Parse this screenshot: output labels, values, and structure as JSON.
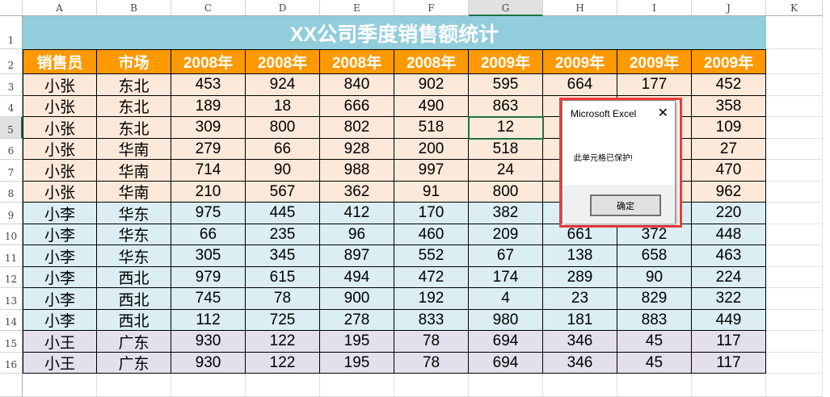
{
  "columns": [
    "A",
    "B",
    "C",
    "D",
    "E",
    "F",
    "G",
    "H",
    "I",
    "J",
    "K"
  ],
  "selected_column": "G",
  "selected_row": 5,
  "title": "XX公司季度销售额统计",
  "headers": [
    "销售员",
    "市场",
    "2008年",
    "2008年",
    "2008年",
    "2008年",
    "2009年",
    "2009年",
    "2009年",
    "2009年"
  ],
  "rows": [
    {
      "group": "orange",
      "cells": [
        "小张",
        "东北",
        "453",
        "924",
        "840",
        "902",
        "595",
        "664",
        "177",
        "452"
      ]
    },
    {
      "group": "orange",
      "cells": [
        "小张",
        "东北",
        "189",
        "18",
        "666",
        "490",
        "863",
        "",
        "",
        "358"
      ]
    },
    {
      "group": "orange",
      "cells": [
        "小张",
        "东北",
        "309",
        "800",
        "802",
        "518",
        "12",
        "",
        "",
        "109"
      ]
    },
    {
      "group": "orange",
      "cells": [
        "小张",
        "华南",
        "279",
        "66",
        "928",
        "200",
        "518",
        "",
        "",
        "27"
      ]
    },
    {
      "group": "orange",
      "cells": [
        "小张",
        "华南",
        "714",
        "90",
        "988",
        "997",
        "24",
        "",
        "",
        "470"
      ]
    },
    {
      "group": "orange",
      "cells": [
        "小张",
        "华南",
        "210",
        "567",
        "362",
        "91",
        "800",
        "",
        "",
        "962"
      ]
    },
    {
      "group": "blue",
      "cells": [
        "小李",
        "华东",
        "975",
        "445",
        "412",
        "170",
        "382",
        "",
        "",
        "220"
      ]
    },
    {
      "group": "blue",
      "cells": [
        "小李",
        "华东",
        "66",
        "235",
        "96",
        "460",
        "209",
        "661",
        "372",
        "448"
      ]
    },
    {
      "group": "blue",
      "cells": [
        "小李",
        "华东",
        "305",
        "345",
        "897",
        "552",
        "67",
        "138",
        "658",
        "463"
      ]
    },
    {
      "group": "blue",
      "cells": [
        "小李",
        "西北",
        "979",
        "615",
        "494",
        "472",
        "174",
        "289",
        "90",
        "224"
      ]
    },
    {
      "group": "blue",
      "cells": [
        "小李",
        "西北",
        "745",
        "78",
        "900",
        "192",
        "4",
        "23",
        "829",
        "322"
      ]
    },
    {
      "group": "blue",
      "cells": [
        "小李",
        "西北",
        "112",
        "725",
        "278",
        "833",
        "980",
        "181",
        "883",
        "449"
      ]
    },
    {
      "group": "purple",
      "cells": [
        "小王",
        "广东",
        "930",
        "122",
        "195",
        "78",
        "694",
        "346",
        "45",
        "117"
      ]
    },
    {
      "group": "purple",
      "cells": [
        "小王",
        "广东",
        "930",
        "122",
        "195",
        "78",
        "694",
        "346",
        "45",
        "117"
      ]
    }
  ],
  "colors": {
    "title_bg": "#92cddc",
    "header_bg": "#ff9900",
    "orange": "#fde9d9",
    "blue": "#daeef3",
    "purple": "#e4dfec",
    "dialog_border": "#f03a3a"
  },
  "dialog": {
    "title": "Microsoft Excel",
    "close_icon": "close-icon",
    "message": "此单元格已保护!",
    "ok": "确定"
  }
}
